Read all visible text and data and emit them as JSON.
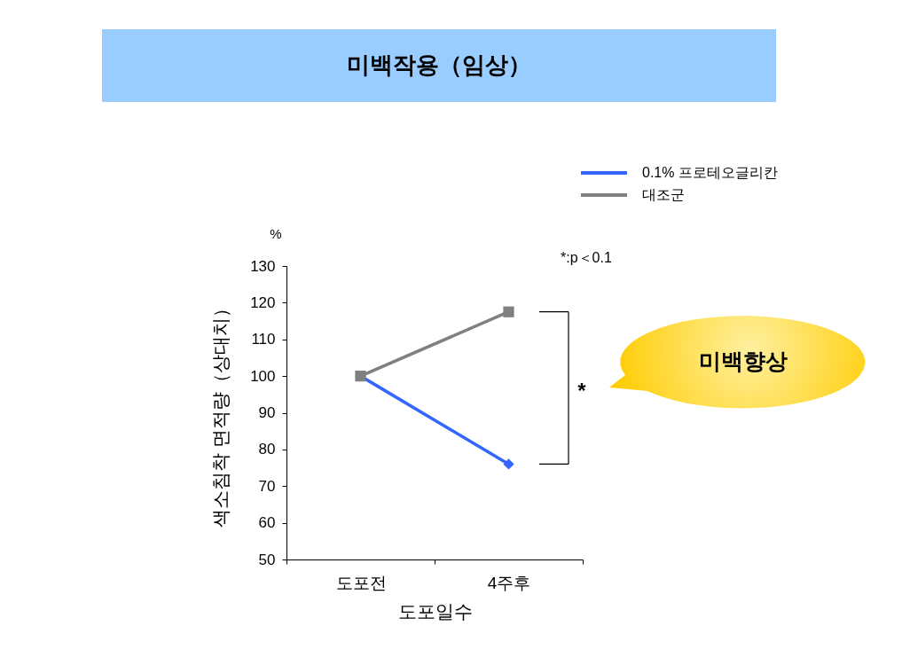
{
  "chart_data": {
    "type": "line",
    "title": "미백작용（임상）",
    "xlabel": "도포일수",
    "ylabel": "색소침착 면적량（상대치）",
    "categories": [
      "도포전",
      "4주후"
    ],
    "series": [
      {
        "name": "0.1% 프로테오글리칸",
        "color": "#3366ff",
        "marker": "diamond",
        "values": [
          100,
          76
        ]
      },
      {
        "name": "대조군",
        "color": "#808080",
        "marker": "square",
        "values": [
          100,
          117.5
        ]
      }
    ],
    "ylim": [
      50,
      130
    ],
    "yticks": [
      50,
      60,
      70,
      80,
      90,
      100,
      110,
      120,
      130
    ],
    "legend": "top right",
    "line_style": "solid",
    "annotations": [
      "%",
      "*:p＜0.1",
      "*",
      "미백향상"
    ]
  }
}
